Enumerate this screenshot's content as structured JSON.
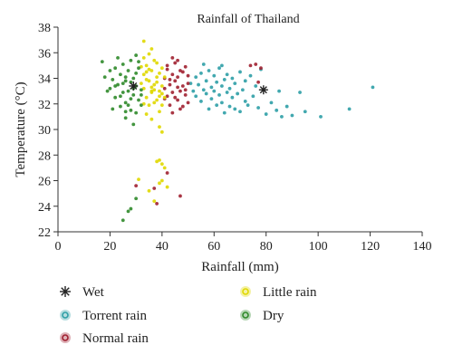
{
  "chart_data": {
    "type": "scatter",
    "title": "Rainfall of Thailand",
    "xlabel": "Rainfall (mm)",
    "ylabel": "Temperature (°C)",
    "xlim": [
      0,
      140
    ],
    "ylim": [
      22,
      38
    ],
    "xticks": [
      0,
      20,
      40,
      60,
      80,
      100,
      120,
      140
    ],
    "yticks": [
      22,
      24,
      26,
      28,
      30,
      32,
      34,
      36,
      38
    ],
    "grid": false,
    "legend_position": "bottom",
    "series": [
      {
        "name": "Wet",
        "color": "#222222",
        "marker": "star",
        "points": [
          [
            29,
            33.4
          ],
          [
            79,
            33.1
          ]
        ]
      },
      {
        "name": "Torrent rain",
        "color": "#2e9fa6",
        "marker": "dot",
        "points": [
          [
            51,
            33.6
          ],
          [
            52,
            33.0
          ],
          [
            53,
            34.1
          ],
          [
            53,
            32.6
          ],
          [
            54,
            33.5
          ],
          [
            55,
            34.4
          ],
          [
            55,
            32.2
          ],
          [
            56,
            33.1
          ],
          [
            57,
            33.8
          ],
          [
            57,
            32.8
          ],
          [
            58,
            34.6
          ],
          [
            58,
            31.6
          ],
          [
            59,
            33.3
          ],
          [
            59,
            32.4
          ],
          [
            60,
            34.2
          ],
          [
            60,
            33.0
          ],
          [
            61,
            33.7
          ],
          [
            61,
            31.9
          ],
          [
            62,
            32.7
          ],
          [
            62,
            34.8
          ],
          [
            63,
            33.4
          ],
          [
            63,
            32.1
          ],
          [
            64,
            33.9
          ],
          [
            64,
            31.3
          ],
          [
            65,
            32.9
          ],
          [
            65,
            34.3
          ],
          [
            66,
            33.2
          ],
          [
            66,
            31.8
          ],
          [
            67,
            34.0
          ],
          [
            67,
            32.5
          ],
          [
            68,
            33.6
          ],
          [
            68,
            31.6
          ],
          [
            69,
            32.8
          ],
          [
            70,
            34.5
          ],
          [
            70,
            31.4
          ],
          [
            71,
            33.1
          ],
          [
            72,
            32.2
          ],
          [
            72,
            33.8
          ],
          [
            73,
            31.9
          ],
          [
            74,
            34.2
          ],
          [
            75,
            32.6
          ],
          [
            76,
            33.4
          ],
          [
            77,
            31.7
          ],
          [
            78,
            34.7
          ],
          [
            80,
            31.2
          ],
          [
            82,
            32.1
          ],
          [
            84,
            31.5
          ],
          [
            88,
            31.8
          ],
          [
            90,
            31.1
          ],
          [
            93,
            32.9
          ],
          [
            95,
            31.4
          ],
          [
            101,
            31.0
          ],
          [
            112,
            31.6
          ],
          [
            121,
            33.3
          ],
          [
            56,
            35.1
          ],
          [
            63,
            35.0
          ],
          [
            85,
            33.0
          ],
          [
            86,
            31.0
          ]
        ]
      },
      {
        "name": "Normal rain",
        "color": "#a02030",
        "marker": "dot",
        "points": [
          [
            41,
            33.2
          ],
          [
            41,
            34.0
          ],
          [
            42,
            32.6
          ],
          [
            42,
            34.7
          ],
          [
            43,
            33.5
          ],
          [
            43,
            31.9
          ],
          [
            44,
            34.3
          ],
          [
            44,
            32.9
          ],
          [
            45,
            33.8
          ],
          [
            45,
            35.2
          ],
          [
            46,
            32.3
          ],
          [
            46,
            34.1
          ],
          [
            47,
            33.0
          ],
          [
            47,
            31.6
          ],
          [
            48,
            34.5
          ],
          [
            48,
            33.4
          ],
          [
            49,
            32.7
          ],
          [
            49,
            34.9
          ],
          [
            50,
            33.6
          ],
          [
            50,
            32.1
          ],
          [
            42,
            35.0
          ],
          [
            44,
            31.3
          ],
          [
            46,
            35.4
          ],
          [
            48,
            31.8
          ],
          [
            43,
            33.9
          ],
          [
            45,
            32.5
          ],
          [
            47,
            34.6
          ],
          [
            49,
            33.1
          ],
          [
            50,
            34.2
          ],
          [
            41,
            32.4
          ],
          [
            46,
            33.3
          ],
          [
            44,
            35.6
          ],
          [
            78,
            34.8
          ],
          [
            76,
            35.1
          ],
          [
            77,
            33.7
          ],
          [
            74,
            35.0
          ],
          [
            42,
            26.6
          ],
          [
            38,
            24.2
          ],
          [
            37,
            25.4
          ],
          [
            30,
            25.6
          ],
          [
            47,
            24.8
          ]
        ]
      },
      {
        "name": "Little rain",
        "color": "#e0d800",
        "marker": "dot",
        "points": [
          [
            33,
            33.2
          ],
          [
            33,
            34.3
          ],
          [
            34,
            32.5
          ],
          [
            34,
            35.0
          ],
          [
            35,
            33.8
          ],
          [
            35,
            31.9
          ],
          [
            36,
            34.6
          ],
          [
            36,
            32.9
          ],
          [
            37,
            33.5
          ],
          [
            37,
            35.4
          ],
          [
            38,
            32.3
          ],
          [
            38,
            34.1
          ],
          [
            39,
            33.0
          ],
          [
            39,
            31.4
          ],
          [
            40,
            34.8
          ],
          [
            40,
            33.4
          ],
          [
            33,
            35.6
          ],
          [
            34,
            31.2
          ],
          [
            35,
            35.9
          ],
          [
            36,
            30.8
          ],
          [
            37,
            33.1
          ],
          [
            38,
            35.2
          ],
          [
            39,
            32.6
          ],
          [
            40,
            31.9
          ],
          [
            33,
            32.0
          ],
          [
            34,
            33.9
          ],
          [
            35,
            34.7
          ],
          [
            36,
            33.3
          ],
          [
            37,
            32.1
          ],
          [
            38,
            33.7
          ],
          [
            39,
            34.4
          ],
          [
            40,
            32.8
          ],
          [
            33,
            36.9
          ],
          [
            36,
            36.3
          ],
          [
            39,
            30.2
          ],
          [
            40,
            29.8
          ],
          [
            41,
            34.1
          ],
          [
            41,
            32.5
          ],
          [
            32,
            33.6
          ],
          [
            32,
            34.9
          ],
          [
            40,
            27.3
          ],
          [
            39,
            27.6
          ],
          [
            41,
            27.0
          ],
          [
            38,
            27.5
          ],
          [
            40,
            26.0
          ],
          [
            37,
            24.4
          ],
          [
            31,
            26.1
          ],
          [
            35,
            25.2
          ],
          [
            39,
            25.8
          ],
          [
            42,
            25.5
          ],
          [
            36,
            33.0
          ],
          [
            34,
            34.5
          ]
        ]
      },
      {
        "name": "Dry",
        "color": "#2f8a2a",
        "marker": "dot",
        "points": [
          [
            17,
            35.3
          ],
          [
            18,
            34.1
          ],
          [
            20,
            33.2
          ],
          [
            21,
            33.9
          ],
          [
            22,
            32.5
          ],
          [
            22,
            34.8
          ],
          [
            23,
            33.5
          ],
          [
            24,
            31.8
          ],
          [
            24,
            34.3
          ],
          [
            25,
            32.9
          ],
          [
            25,
            35.1
          ],
          [
            26,
            33.8
          ],
          [
            26,
            32.1
          ],
          [
            27,
            34.6
          ],
          [
            27,
            33.0
          ],
          [
            28,
            31.5
          ],
          [
            28,
            35.4
          ],
          [
            29,
            32.7
          ],
          [
            29,
            34.0
          ],
          [
            30,
            33.4
          ],
          [
            30,
            35.8
          ],
          [
            30,
            31.3
          ],
          [
            31,
            32.3
          ],
          [
            31,
            34.8
          ],
          [
            32,
            33.1
          ],
          [
            32,
            31.9
          ],
          [
            19,
            33.0
          ],
          [
            21,
            31.6
          ],
          [
            23,
            35.6
          ],
          [
            26,
            30.9
          ],
          [
            28,
            32.4
          ],
          [
            31,
            35.3
          ],
          [
            25,
            33.6
          ],
          [
            27,
            31.9
          ],
          [
            29,
            33.2
          ],
          [
            22,
            33.4
          ],
          [
            24,
            32.6
          ],
          [
            26,
            34.1
          ],
          [
            28,
            33.7
          ],
          [
            30,
            34.4
          ],
          [
            32,
            32.7
          ],
          [
            20,
            34.6
          ],
          [
            29,
            30.4
          ],
          [
            27,
            23.6
          ],
          [
            25,
            22.9
          ],
          [
            28,
            23.8
          ],
          [
            30,
            24.6
          ],
          [
            26,
            31.4
          ]
        ]
      }
    ]
  }
}
